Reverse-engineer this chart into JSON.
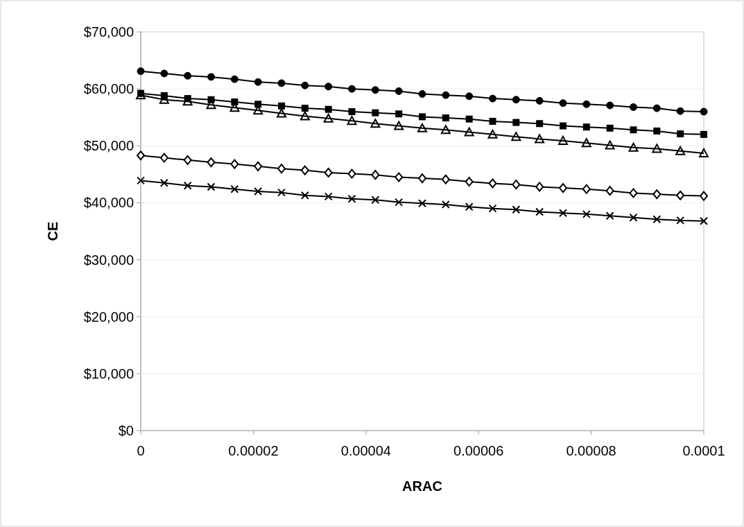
{
  "chart_data": {
    "type": "line",
    "xlabel": "ARAC",
    "ylabel": "CE",
    "x": [
      0,
      4.1667e-06,
      8.3333e-06,
      1.25e-05,
      1.66667e-05,
      2.08333e-05,
      2.5e-05,
      2.91667e-05,
      3.33333e-05,
      3.75e-05,
      4.16667e-05,
      4.58333e-05,
      5e-05,
      5.41667e-05,
      5.83333e-05,
      6.25e-05,
      6.66667e-05,
      7.08333e-05,
      7.5e-05,
      7.91667e-05,
      8.33333e-05,
      8.75e-05,
      9.16667e-05,
      9.58333e-05,
      0.0001
    ],
    "series": [
      {
        "color": "#000000",
        "marker": "circle",
        "values": [
          63100,
          62700,
          62300,
          62100,
          61700,
          61200,
          61000,
          60600,
          60400,
          60000,
          59800,
          59600,
          59100,
          58900,
          58700,
          58300,
          58100,
          57900,
          57500,
          57300,
          57100,
          56800,
          56600,
          56100,
          56000
        ]
      },
      {
        "color": "#000000",
        "marker": "square",
        "values": [
          59200,
          58800,
          58300,
          58100,
          57700,
          57300,
          57000,
          56600,
          56400,
          56000,
          55800,
          55600,
          55100,
          54900,
          54700,
          54300,
          54100,
          53900,
          53500,
          53300,
          53100,
          52800,
          52600,
          52100,
          52000
        ]
      },
      {
        "color": "#000000",
        "marker": "triangle",
        "values": [
          58900,
          58100,
          57800,
          57200,
          56700,
          56200,
          55700,
          55200,
          54800,
          54400,
          53900,
          53500,
          53100,
          52800,
          52400,
          52000,
          51600,
          51200,
          50900,
          50500,
          50100,
          49700,
          49500,
          49100,
          48700
        ]
      },
      {
        "color": "#000000",
        "marker": "diamond",
        "values": [
          48300,
          47900,
          47500,
          47100,
          46800,
          46400,
          46000,
          45700,
          45300,
          45100,
          44900,
          44500,
          44300,
          44100,
          43700,
          43400,
          43200,
          42800,
          42600,
          42400,
          42100,
          41700,
          41500,
          41300,
          41200
        ]
      },
      {
        "color": "#000000",
        "marker": "cross",
        "values": [
          43900,
          43500,
          43000,
          42800,
          42400,
          42000,
          41800,
          41300,
          41100,
          40700,
          40500,
          40100,
          39900,
          39700,
          39300,
          39000,
          38800,
          38400,
          38200,
          38000,
          37700,
          37400,
          37100,
          36900,
          36800
        ]
      }
    ],
    "xlim": [
      0,
      0.0001
    ],
    "xticks": [
      0,
      {
        "value": 2e-05,
        "label": "0.00002"
      },
      {
        "value": 4e-05,
        "label": "0.00004"
      },
      {
        "value": 6e-05,
        "label": "0.00006"
      },
      {
        "value": 8e-05,
        "label": "0.00008"
      },
      {
        "value": 0.0001,
        "label": "0.0001"
      }
    ],
    "ylim": [
      0,
      70000
    ],
    "yticks": [
      {
        "value": 0,
        "label": "$0"
      },
      {
        "value": 10000,
        "label": "$10,000"
      },
      {
        "value": 20000,
        "label": "$20,000"
      },
      {
        "value": 30000,
        "label": "$30,000"
      },
      {
        "value": 40000,
        "label": "$40,000"
      },
      {
        "value": 50000,
        "label": "$50,000"
      },
      {
        "value": 60000,
        "label": "$60,000"
      },
      {
        "value": 70000,
        "label": "$70,000"
      }
    ],
    "grid": "y",
    "line_style": "solid"
  }
}
